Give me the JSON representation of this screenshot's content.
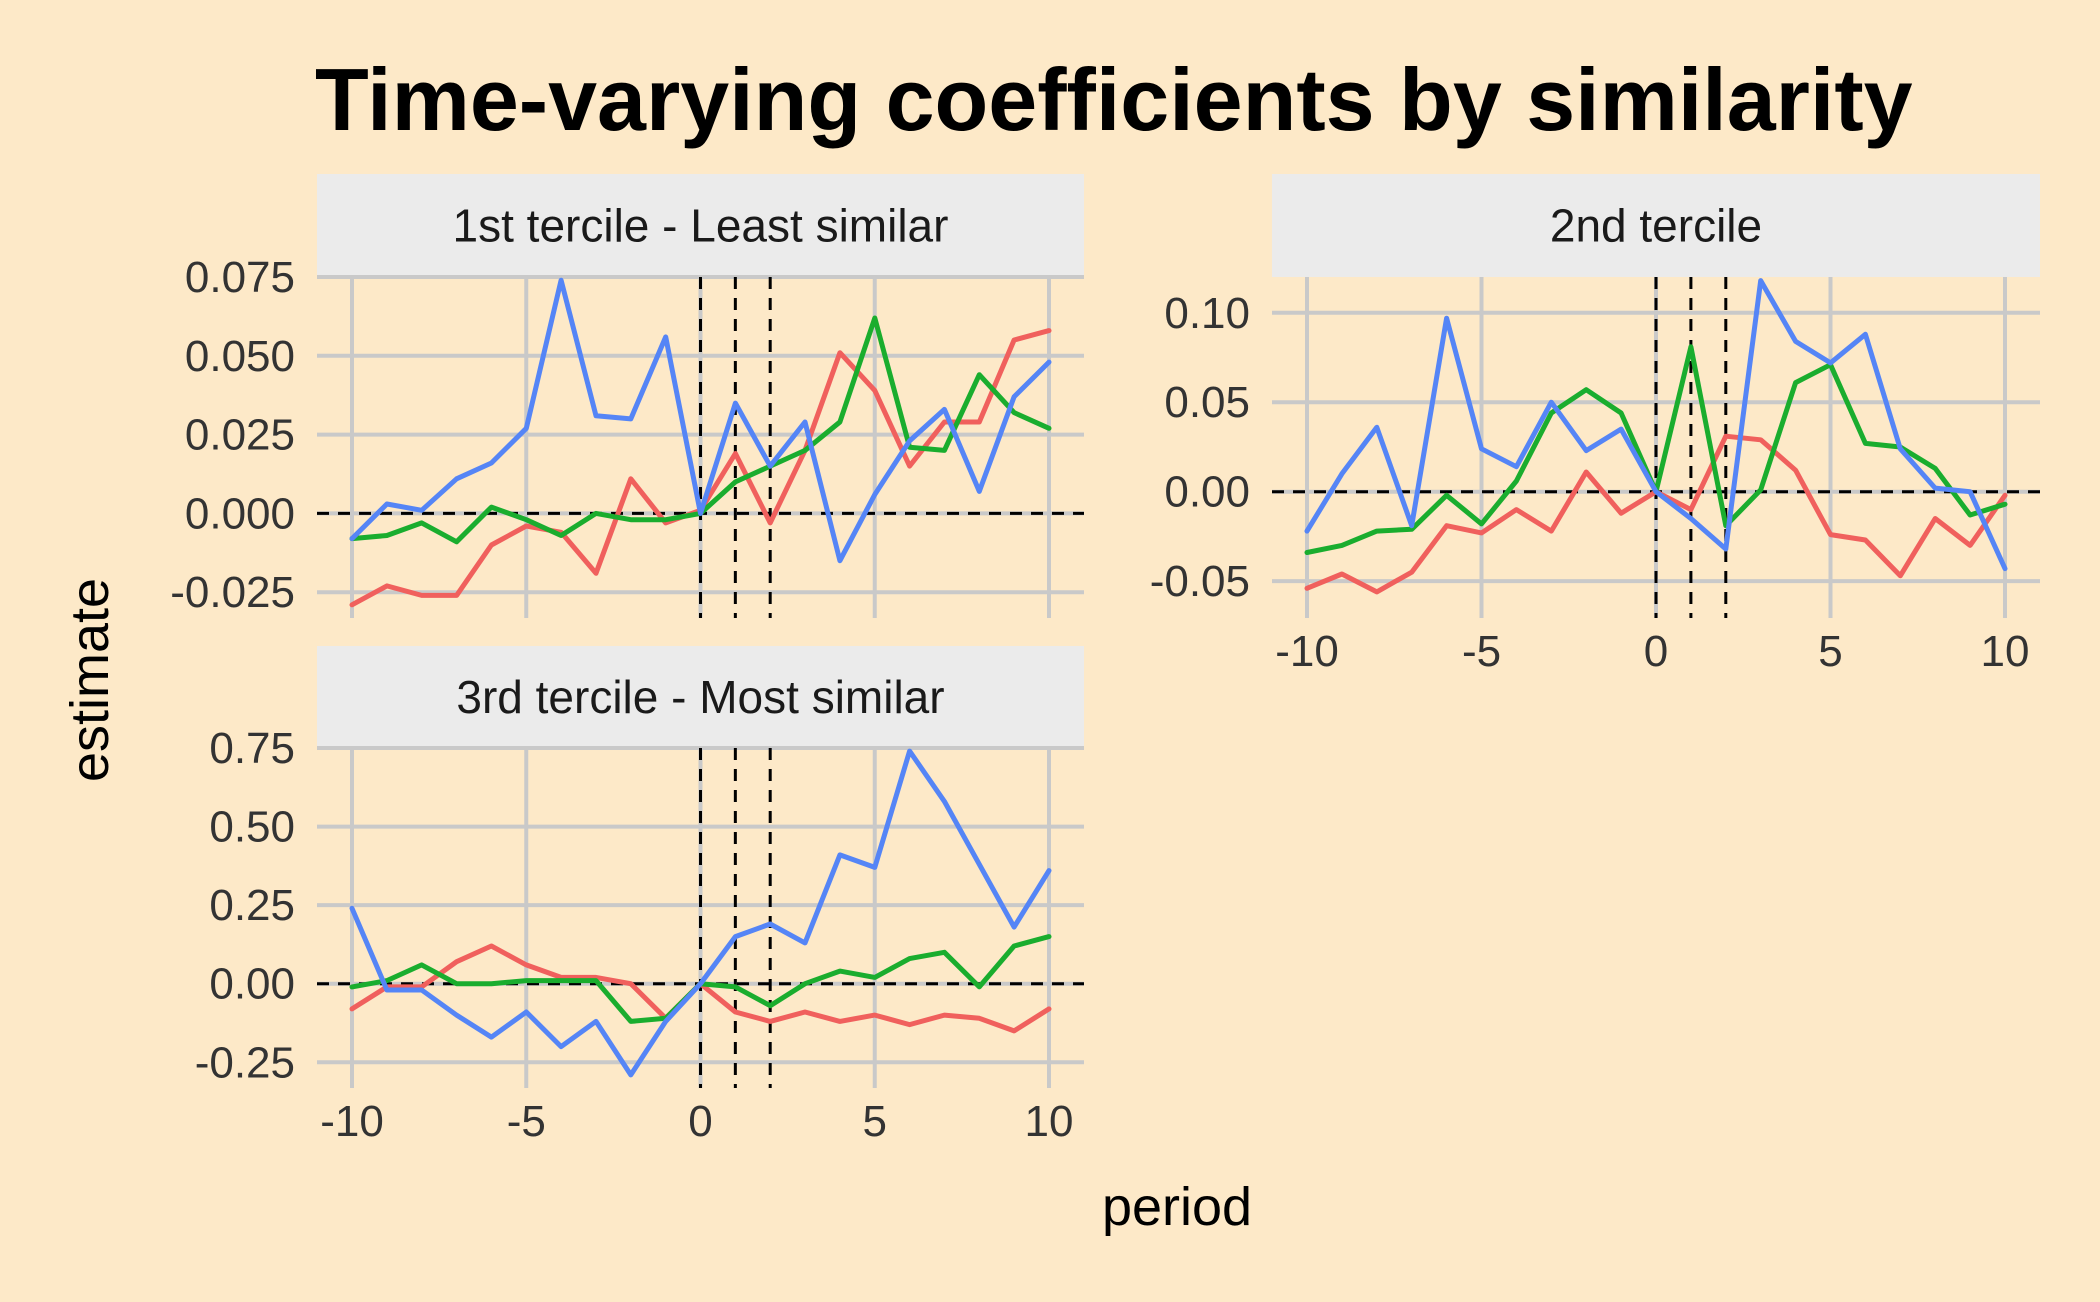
{
  "title": "Time-varying coefficients by similarity",
  "xlabel": "period",
  "ylabel": "estimate",
  "colors": {
    "red": "#f0605d",
    "green": "#1aad2e",
    "blue": "#5585f6",
    "background": "#fde9c8",
    "strip": "#ebebeb"
  },
  "chart_data": [
    {
      "type": "line",
      "panel_title": "1st tercile - Least similar",
      "x": [
        -10,
        -9,
        -8,
        -7,
        -6,
        -5,
        -4,
        -3,
        -2,
        -1,
        0,
        1,
        2,
        3,
        4,
        5,
        6,
        7,
        8,
        9,
        10
      ],
      "xlim": [
        -10,
        10
      ],
      "x_ticks": [
        "-10",
        "-5",
        "0",
        "5",
        "10"
      ],
      "x_tick_values": [
        -10,
        -5,
        0,
        5,
        10
      ],
      "ylim": [
        -0.03,
        0.075
      ],
      "y_ticks": [
        "-0.025",
        "0.000",
        "0.025",
        "0.050",
        "0.075"
      ],
      "y_tick_values": [
        -0.025,
        0,
        0.025,
        0.05,
        0.075
      ],
      "show_x_tick_labels": false,
      "vlines": [
        0,
        1,
        2
      ],
      "hline": 0,
      "series": [
        {
          "color": "#f0605d",
          "values": [
            -0.029,
            -0.023,
            -0.026,
            -0.026,
            -0.01,
            -0.004,
            -0.006,
            -0.019,
            0.011,
            -0.003,
            0.001,
            0.019,
            -0.003,
            0.02,
            0.051,
            0.039,
            0.015,
            0.029,
            0.029,
            0.055,
            0.058
          ]
        },
        {
          "color": "#1aad2e",
          "values": [
            -0.008,
            -0.007,
            -0.003,
            -0.009,
            0.002,
            -0.002,
            -0.007,
            0.0,
            -0.002,
            -0.002,
            0.0,
            0.01,
            0.015,
            0.02,
            0.029,
            0.062,
            0.021,
            0.02,
            0.044,
            0.032,
            0.027
          ]
        },
        {
          "color": "#5585f6",
          "values": [
            -0.008,
            0.003,
            0.001,
            0.011,
            0.016,
            0.027,
            0.074,
            0.031,
            0.03,
            0.056,
            0.0,
            0.035,
            0.015,
            0.029,
            -0.015,
            0.006,
            0.023,
            0.033,
            0.007,
            0.037,
            0.048
          ]
        }
      ]
    },
    {
      "type": "line",
      "panel_title": "2nd tercile",
      "x": [
        -10,
        -9,
        -8,
        -7,
        -6,
        -5,
        -4,
        -3,
        -2,
        -1,
        0,
        1,
        2,
        3,
        4,
        5,
        6,
        7,
        8,
        9,
        10
      ],
      "xlim": [
        -10,
        10
      ],
      "x_ticks": [
        "-10",
        "-5",
        "0",
        "5",
        "10"
      ],
      "x_tick_values": [
        -10,
        -5,
        0,
        5,
        10
      ],
      "ylim": [
        -0.065,
        0.12
      ],
      "y_ticks": [
        "-0.05",
        "0.00",
        "0.05",
        "0.10"
      ],
      "y_tick_values": [
        -0.05,
        0,
        0.05,
        0.1
      ],
      "show_x_tick_labels": true,
      "vlines": [
        0,
        1,
        2
      ],
      "hline": 0,
      "series": [
        {
          "color": "#f0605d",
          "values": [
            -0.054,
            -0.046,
            -0.056,
            -0.045,
            -0.019,
            -0.023,
            -0.01,
            -0.022,
            0.011,
            -0.012,
            0.0,
            -0.01,
            0.031,
            0.029,
            0.012,
            -0.024,
            -0.027,
            -0.047,
            -0.015,
            -0.03,
            -0.002
          ]
        },
        {
          "color": "#1aad2e",
          "values": [
            -0.034,
            -0.03,
            -0.022,
            -0.021,
            -0.002,
            -0.018,
            0.006,
            0.044,
            0.057,
            0.044,
            0.0,
            0.081,
            -0.019,
            0.001,
            0.061,
            0.071,
            0.027,
            0.025,
            0.013,
            -0.013,
            -0.007
          ]
        },
        {
          "color": "#5585f6",
          "values": [
            -0.022,
            0.01,
            0.036,
            -0.019,
            0.097,
            0.024,
            0.014,
            0.05,
            0.023,
            0.035,
            0.0,
            -0.015,
            -0.032,
            0.118,
            0.084,
            0.072,
            0.088,
            0.024,
            0.002,
            0.0,
            -0.043
          ]
        }
      ]
    },
    {
      "type": "line",
      "panel_title": "3rd tercile - Most similar",
      "x": [
        -10,
        -9,
        -8,
        -7,
        -6,
        -5,
        -4,
        -3,
        -2,
        -1,
        0,
        1,
        2,
        3,
        4,
        5,
        6,
        7,
        8,
        9,
        10
      ],
      "xlim": [
        -10,
        10
      ],
      "x_ticks": [
        "-10",
        "-5",
        "0",
        "5",
        "10"
      ],
      "x_tick_values": [
        -10,
        -5,
        0,
        5,
        10
      ],
      "ylim": [
        -0.3,
        0.75
      ],
      "y_ticks": [
        "-0.25",
        "0.00",
        "0.25",
        "0.50",
        "0.75"
      ],
      "y_tick_values": [
        -0.25,
        0,
        0.25,
        0.5,
        0.75
      ],
      "show_x_tick_labels": true,
      "vlines": [
        0,
        1,
        2
      ],
      "hline": 0,
      "series": [
        {
          "color": "#f0605d",
          "values": [
            -0.08,
            -0.01,
            -0.01,
            0.07,
            0.12,
            0.06,
            0.02,
            0.02,
            0.0,
            -0.11,
            0.0,
            -0.09,
            -0.12,
            -0.09,
            -0.12,
            -0.1,
            -0.13,
            -0.1,
            -0.11,
            -0.15,
            -0.08
          ]
        },
        {
          "color": "#1aad2e",
          "values": [
            -0.01,
            0.01,
            0.06,
            0.0,
            0.0,
            0.01,
            0.01,
            0.01,
            -0.12,
            -0.11,
            0.0,
            -0.01,
            -0.07,
            0.0,
            0.04,
            0.02,
            0.08,
            0.1,
            -0.01,
            0.12,
            0.15
          ]
        },
        {
          "color": "#5585f6",
          "values": [
            0.24,
            -0.02,
            -0.02,
            -0.1,
            -0.17,
            -0.09,
            -0.2,
            -0.12,
            -0.29,
            -0.12,
            0.0,
            0.15,
            0.19,
            0.13,
            0.41,
            0.37,
            0.74,
            0.58,
            0.38,
            0.18,
            0.36
          ]
        }
      ]
    }
  ]
}
